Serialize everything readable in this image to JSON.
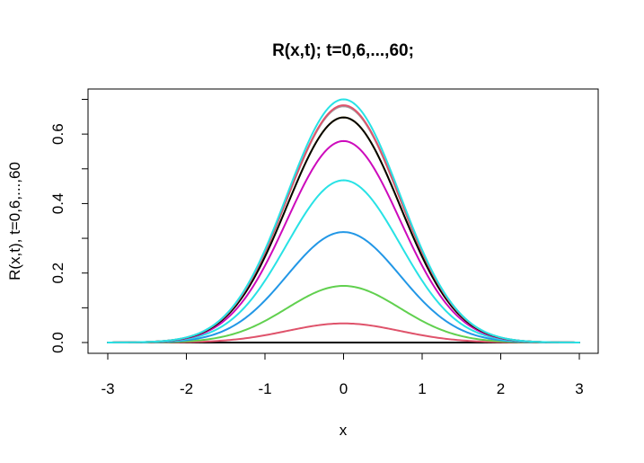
{
  "chart_data": {
    "type": "line",
    "title": "R(x,t); t=0,6,...,60;",
    "xlabel": "x",
    "ylabel": "R(x,t), t=0,6,...,60",
    "xlim": [
      -3,
      3
    ],
    "ylim": [
      0,
      0.7
    ],
    "x_ticks": [
      "-3",
      "-2",
      "-1",
      "0",
      "1",
      "2",
      "3"
    ],
    "y_ticks": [
      "0.0",
      "0.2",
      "0.4",
      "0.6"
    ],
    "grid": false,
    "legend": "none",
    "x": [
      -3,
      -2.75,
      -2.5,
      -2.25,
      -2,
      -1.75,
      -1.5,
      -1.25,
      -1,
      -0.75,
      -0.5,
      -0.25,
      0,
      0.25,
      0.5,
      0.75,
      1,
      1.25,
      1.5,
      1.75,
      2,
      2.25,
      2.5,
      2.75,
      3
    ],
    "series": [
      {
        "color": "#000000",
        "values": [
          0,
          0,
          0,
          0,
          0,
          0,
          0,
          0,
          0,
          0,
          0,
          0,
          0,
          0,
          0,
          0,
          0,
          0,
          0,
          0,
          0,
          0,
          0,
          0,
          0
        ]
      },
      {
        "color": "#DF536B",
        "peak": 0.055
      },
      {
        "color": "#61D04F",
        "peak": 0.163
      },
      {
        "color": "#2297E6",
        "peak": 0.318
      },
      {
        "color": "#28E2E5",
        "peak": 0.467
      },
      {
        "color": "#CD0BBC",
        "peak": 0.58
      },
      {
        "color": "#F5C710",
        "peak": 0.648
      },
      {
        "color": "#9E9E9E",
        "peak": 0.68
      },
      {
        "color": "#000000",
        "peak": 0.648
      },
      {
        "color": "#DF536B",
        "peak": 0.683
      },
      {
        "color": "#28E2E5",
        "peak": 0.7
      }
    ]
  }
}
